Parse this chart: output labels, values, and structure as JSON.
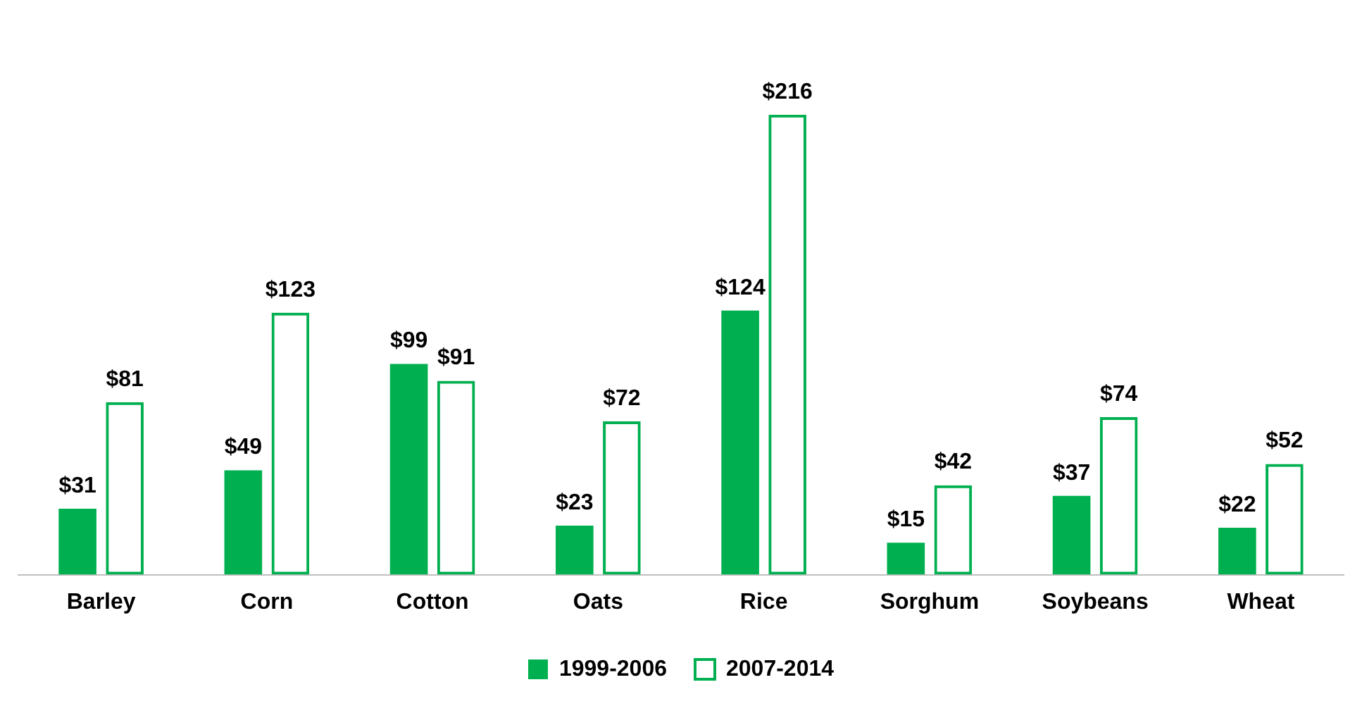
{
  "chart_data": {
    "type": "bar",
    "categories": [
      "Barley",
      "Corn",
      "Cotton",
      "Oats",
      "Rice",
      "Sorghum",
      "Soybeans",
      "Wheat"
    ],
    "series": [
      {
        "name": "1999-2006",
        "color": "#00b050",
        "values": [
          31,
          49,
          99,
          23,
          124,
          15,
          37,
          22
        ],
        "value_labels": [
          "$31",
          "$49",
          "$99",
          "$23",
          "$124",
          "$15",
          "$37",
          "$22"
        ]
      },
      {
        "name": "2007-2014",
        "color": "#00b050",
        "values": [
          81,
          123,
          91,
          72,
          216,
          42,
          74,
          52
        ],
        "value_labels": [
          "$81",
          "$123",
          "$91",
          "$72",
          "$216",
          "$42",
          "$74",
          "$52"
        ]
      }
    ],
    "legend": "bottom",
    "grid": false
  }
}
